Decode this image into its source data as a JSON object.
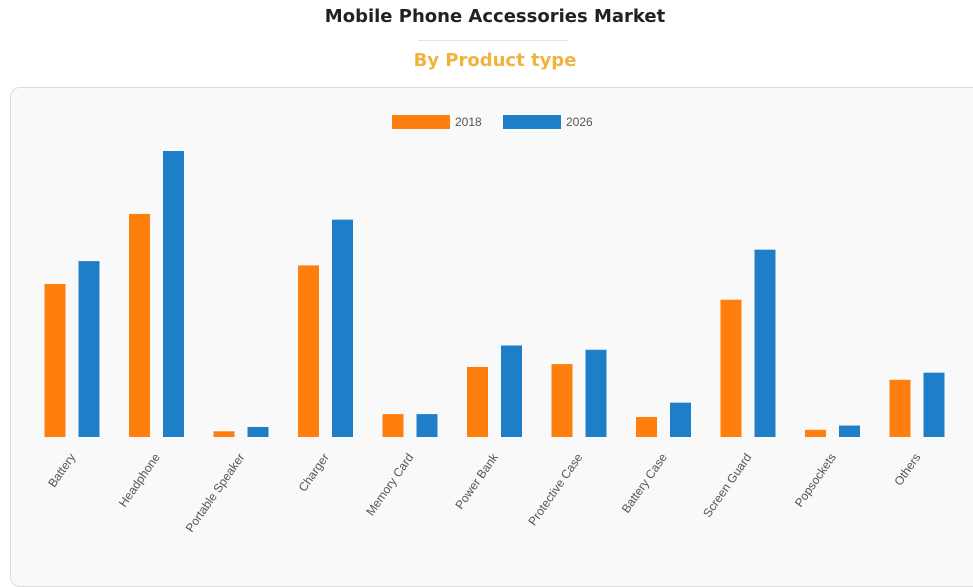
{
  "header": {
    "title": "Mobile Phone Accessories Market",
    "subtitle": "By Product type",
    "subtitle_color": "#f0b43c"
  },
  "chart_data": {
    "type": "bar",
    "title": "",
    "xlabel": "",
    "ylabel": "",
    "legend_position": "top-center",
    "grid": false,
    "y_axis_visible": false,
    "ylim": [
      0,
      100
    ],
    "categories": [
      "Battery",
      "Headphone",
      "Portable Speaker",
      "Charger",
      "Memory Card",
      "Power Bank",
      "Protective Case",
      "Battery Case",
      "Screen Guard",
      "Popsockets",
      "Others"
    ],
    "series": [
      {
        "name": "2018",
        "color": "#ff7f0e",
        "values": [
          53.5,
          78,
          2,
          60,
          8,
          24.5,
          25.5,
          7,
          48,
          2.5,
          20
        ]
      },
      {
        "name": "2026",
        "color": "#1f7ec8",
        "values": [
          61.5,
          100,
          3.5,
          76,
          8,
          32,
          30.5,
          12,
          65.5,
          4,
          22.5
        ]
      }
    ]
  }
}
